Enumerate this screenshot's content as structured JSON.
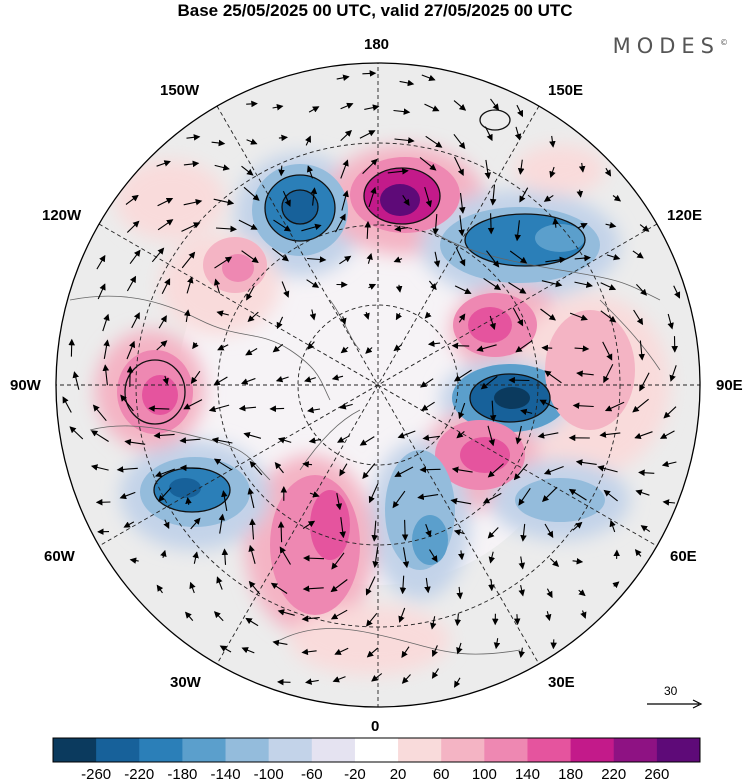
{
  "title": "Base 25/05/2025 00 UTC, valid 27/05/2025 00 UTC",
  "brand": "MODES",
  "brand_mark": "©",
  "longitude_labels": {
    "top": "180",
    "bottom": "0",
    "left": "90W",
    "right": "90E",
    "upper_left_1": "150W",
    "upper_left_2": "120W",
    "upper_right_1": "150E",
    "upper_right_2": "120E",
    "lower_left_1": "60W",
    "lower_left_2": "30W",
    "lower_right_1": "60E",
    "lower_right_2": "30E"
  },
  "wind_scale": "30",
  "colorbar": {
    "ticks": [
      "-260",
      "-220",
      "-180",
      "-140",
      "-100",
      "-60",
      "-20",
      "20",
      "60",
      "100",
      "140",
      "180",
      "220",
      "260"
    ],
    "colors": [
      "#0b3a5e",
      "#17619a",
      "#2b7fb8",
      "#5b9fcc",
      "#94bcdc",
      "#c3d3e9",
      "#e5e3f1",
      "#ffffff",
      "#f9dbdb",
      "#f4b4c4",
      "#ee88b2",
      "#e5549e",
      "#c31a8a",
      "#8e1283",
      "#5e0a78"
    ]
  },
  "anomaly_centers": [
    {
      "name": "negative-center-150W",
      "value": -220,
      "color": "#17619a"
    },
    {
      "name": "positive-center-180",
      "value": 260,
      "color": "#5e0a78"
    },
    {
      "name": "negative-center-120E",
      "value": -180,
      "color": "#2b7fb8"
    },
    {
      "name": "positive-center-100E",
      "value": 140,
      "color": "#e5549e"
    },
    {
      "name": "negative-center-90E",
      "value": -220,
      "color": "#17619a"
    },
    {
      "name": "positive-center-70E",
      "value": 140,
      "color": "#e5549e"
    },
    {
      "name": "negative-center-45E",
      "value": -100,
      "color": "#94bcdc"
    },
    {
      "name": "positive-center-20W",
      "value": 140,
      "color": "#ee88b2"
    },
    {
      "name": "negative-center-70W",
      "value": -180,
      "color": "#2b7fb8"
    },
    {
      "name": "positive-center-95W",
      "value": 140,
      "color": "#e5549e"
    },
    {
      "name": "positive-center-125W",
      "value": 100,
      "color": "#ee88b2"
    },
    {
      "name": "negative-center-60E",
      "value": -100,
      "color": "#94bcdc"
    }
  ]
}
